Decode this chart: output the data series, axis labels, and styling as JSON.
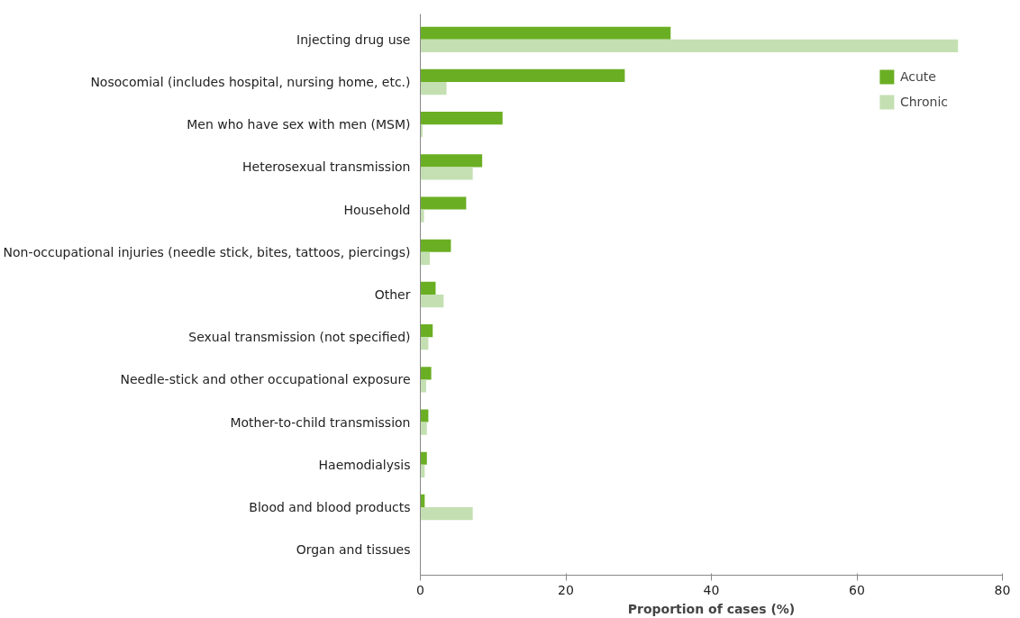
{
  "chart_data": {
    "type": "bar",
    "orientation": "horizontal",
    "xlabel": "Proportion of cases (%)",
    "categories": [
      "Injecting drug use",
      "Nosocomial (includes hospital, nursing home, etc.)",
      "Men who have sex with men (MSM)",
      "Heterosexual transmission",
      "Household",
      "Non-occupational injuries (needle stick, bites, tattoos, piercings)",
      "Other",
      "Sexual transmission (not specified)",
      "Needle-stick and other occupational exposure",
      "Mother-to-child transmission",
      "Haemodialysis",
      "Blood and blood products",
      "Organ and tissues"
    ],
    "series": [
      {
        "name": "Acute",
        "color": "#6aaf23",
        "values": [
          34.4,
          28.1,
          11.3,
          8.5,
          6.3,
          4.2,
          2.1,
          1.7,
          1.5,
          1.1,
          0.9,
          0.6,
          0
        ]
      },
      {
        "name": "Chronic",
        "color": "#c4e0b2",
        "values": [
          73.9,
          3.6,
          0.3,
          7.2,
          0.5,
          1.3,
          3.2,
          1.1,
          0.8,
          0.9,
          0.6,
          7.2,
          0
        ]
      }
    ],
    "xlim": [
      0,
      80
    ],
    "xticks": [
      0,
      20,
      40,
      60,
      80
    ],
    "grid": false,
    "legend": "top right"
  }
}
